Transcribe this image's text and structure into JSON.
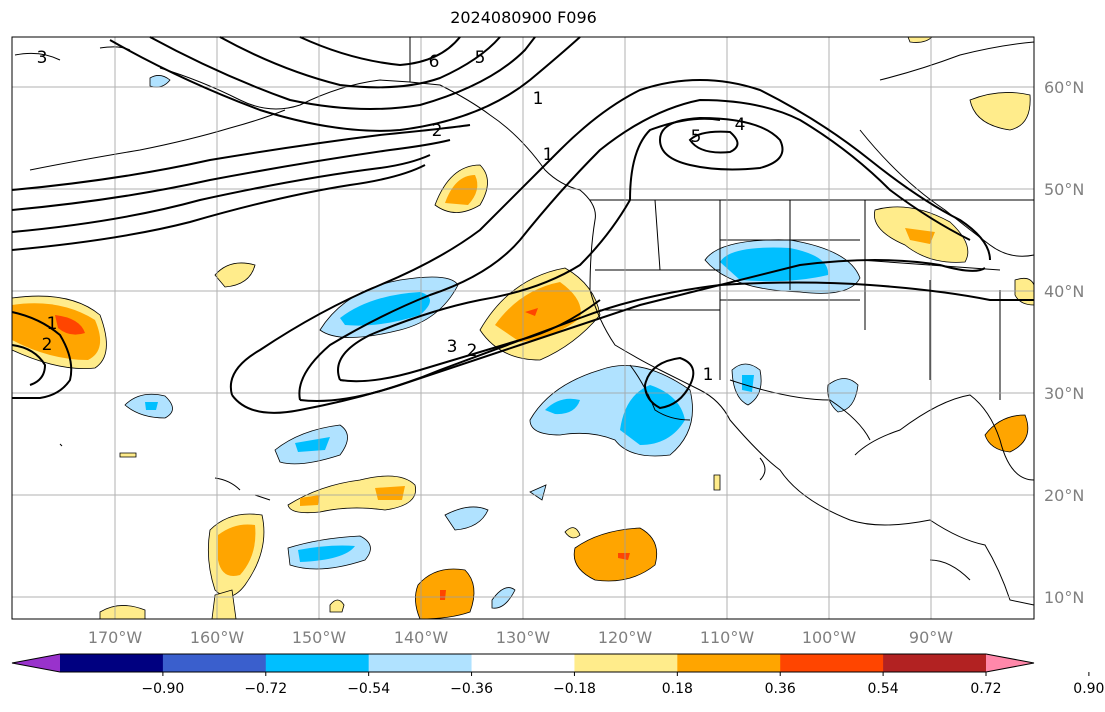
{
  "title": "2024080900 F096",
  "map": {
    "lon_labels": [
      "170°W",
      "160°W",
      "150°W",
      "140°W",
      "130°W",
      "120°W",
      "110°W",
      "100°W",
      "90°W"
    ],
    "lat_labels": [
      "60°N",
      "50°N",
      "40°N",
      "30°N",
      "20°N",
      "10°N"
    ],
    "contour_labels": [
      "6",
      "5",
      "2",
      "1",
      "1",
      "5",
      "4",
      "3",
      "2",
      "1",
      "2",
      "3",
      "1"
    ]
  },
  "colorbar": {
    "ticks": [
      "−0.90",
      "−0.72",
      "−0.54",
      "−0.36",
      "−0.18",
      "0.18",
      "0.36",
      "0.54",
      "0.72",
      "0.90"
    ],
    "colors": [
      "#9932cc",
      "#000080",
      "#3a5fcd",
      "#00bfff",
      "#b0e2ff",
      "#ffffff",
      "#ffec8b",
      "#ffa500",
      "#ff4500",
      "#b22222",
      "#ff88aa"
    ]
  }
}
